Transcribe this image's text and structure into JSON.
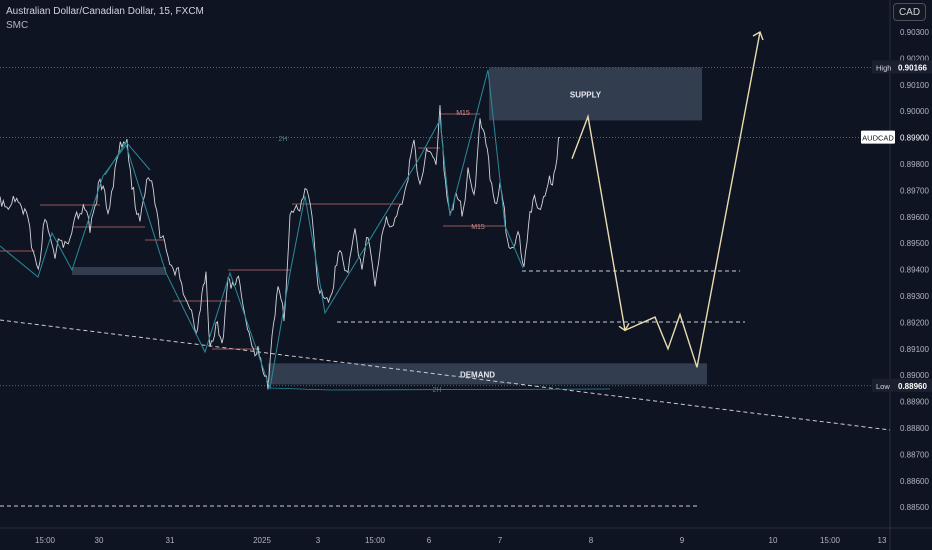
{
  "header": {
    "title": "Australian Dollar/Canadian Dollar, 15, FXCM",
    "subtitle": "SMC",
    "currency": "CAD"
  },
  "colors": {
    "background": "#0f1422",
    "price": "#d1d4dc",
    "swing": "#2b8a9a",
    "structure": "#c96b6b",
    "projection": "#e8dcb0",
    "zone": "#3a4458",
    "text": "#b2b5be"
  },
  "chart_data": {
    "type": "line",
    "ylim": [
      0.8848,
      0.9033
    ],
    "y_ticks": [
      "0.90300",
      "0.90200",
      "0.90100",
      "0.90000",
      "0.89900",
      "0.89800",
      "0.89700",
      "0.89600",
      "0.89500",
      "0.89400",
      "0.89300",
      "0.89200",
      "0.89100",
      "0.89000",
      "0.88900",
      "0.88800",
      "0.88700",
      "0.88600",
      "0.88500"
    ],
    "x_ticks": [
      "15:00",
      "30",
      "31",
      "2025",
      "3",
      "15:00",
      "6",
      "7",
      "8",
      "9",
      "10",
      "15:00",
      "13"
    ],
    "price_labels": [
      {
        "tag": "High",
        "value": "0.90166"
      },
      {
        "tag": "AUDCAD",
        "value": "0.89900"
      },
      {
        "tag": "Low",
        "value": "0.88960"
      }
    ],
    "zones": [
      {
        "label": "SUPPLY",
        "y_top": 0.90166,
        "y_bottom": 0.89965
      },
      {
        "label": "DEMAND",
        "y_top": 0.89045,
        "y_bottom": 0.88965
      }
    ],
    "annotations": [
      "2H",
      "2H",
      "M15",
      "M15"
    ],
    "price_path": [
      [
        0,
        0.8966
      ],
      [
        10,
        0.8962
      ],
      [
        20,
        0.8966
      ],
      [
        28,
        0.8955
      ],
      [
        35,
        0.8945
      ],
      [
        40,
        0.894
      ],
      [
        45,
        0.896
      ],
      [
        50,
        0.8952
      ],
      [
        55,
        0.8942
      ],
      [
        60,
        0.895
      ],
      [
        70,
        0.8948
      ],
      [
        80,
        0.8962
      ],
      [
        90,
        0.8955
      ],
      [
        95,
        0.8965
      ],
      [
        100,
        0.897
      ],
      [
        108,
        0.8962
      ],
      [
        115,
        0.8975
      ],
      [
        122,
        0.8988
      ],
      [
        127,
        0.8985
      ],
      [
        132,
        0.8968
      ],
      [
        140,
        0.8958
      ],
      [
        150,
        0.8975
      ],
      [
        155,
        0.8966
      ],
      [
        160,
        0.895
      ],
      [
        168,
        0.8945
      ],
      [
        175,
        0.8935
      ],
      [
        180,
        0.8938
      ],
      [
        185,
        0.8928
      ],
      [
        190,
        0.8922
      ],
      [
        196,
        0.8915
      ],
      [
        202,
        0.8928
      ],
      [
        206,
        0.8935
      ],
      [
        210,
        0.891
      ],
      [
        216,
        0.8918
      ],
      [
        222,
        0.8908
      ],
      [
        228,
        0.8938
      ],
      [
        234,
        0.893
      ],
      [
        240,
        0.8935
      ],
      [
        246,
        0.8918
      ],
      [
        252,
        0.8908
      ],
      [
        258,
        0.891
      ],
      [
        262,
        0.89
      ],
      [
        268,
        0.8895
      ],
      [
        272,
        0.8915
      ],
      [
        278,
        0.893
      ],
      [
        284,
        0.892
      ],
      [
        290,
        0.8958
      ],
      [
        298,
        0.8962
      ],
      [
        305,
        0.8968
      ],
      [
        312,
        0.896
      ],
      [
        318,
        0.8935
      ],
      [
        325,
        0.8925
      ],
      [
        332,
        0.8932
      ],
      [
        340,
        0.8945
      ],
      [
        348,
        0.8938
      ],
      [
        355,
        0.8952
      ],
      [
        362,
        0.894
      ],
      [
        368,
        0.895
      ],
      [
        375,
        0.8935
      ],
      [
        380,
        0.8945
      ],
      [
        388,
        0.8958
      ],
      [
        395,
        0.8955
      ],
      [
        402,
        0.8965
      ],
      [
        408,
        0.8975
      ],
      [
        414,
        0.8985
      ],
      [
        420,
        0.8972
      ],
      [
        428,
        0.8983
      ],
      [
        436,
        0.898
      ],
      [
        440,
        0.8998
      ],
      [
        444,
        0.8975
      ],
      [
        450,
        0.8962
      ],
      [
        456,
        0.8965
      ],
      [
        462,
        0.896
      ],
      [
        468,
        0.8975
      ],
      [
        474,
        0.8965
      ],
      [
        480,
        0.8998
      ],
      [
        486,
        0.8985
      ],
      [
        490,
        0.8975
      ],
      [
        495,
        0.8965
      ],
      [
        500,
        0.897
      ],
      [
        506,
        0.8955
      ],
      [
        512,
        0.8945
      ],
      [
        518,
        0.895
      ],
      [
        524,
        0.8942
      ],
      [
        530,
        0.8958
      ],
      [
        536,
        0.8965
      ],
      [
        542,
        0.896
      ],
      [
        548,
        0.897
      ],
      [
        554,
        0.8975
      ],
      [
        560,
        0.899
      ]
    ],
    "projection_path": [
      [
        572,
        0.8982
      ],
      [
        588,
        0.8998
      ],
      [
        625,
        0.8917
      ],
      [
        655,
        0.8922
      ],
      [
        668,
        0.891
      ],
      [
        680,
        0.8923
      ],
      [
        697,
        0.8903
      ],
      [
        760,
        0.903
      ]
    ]
  }
}
